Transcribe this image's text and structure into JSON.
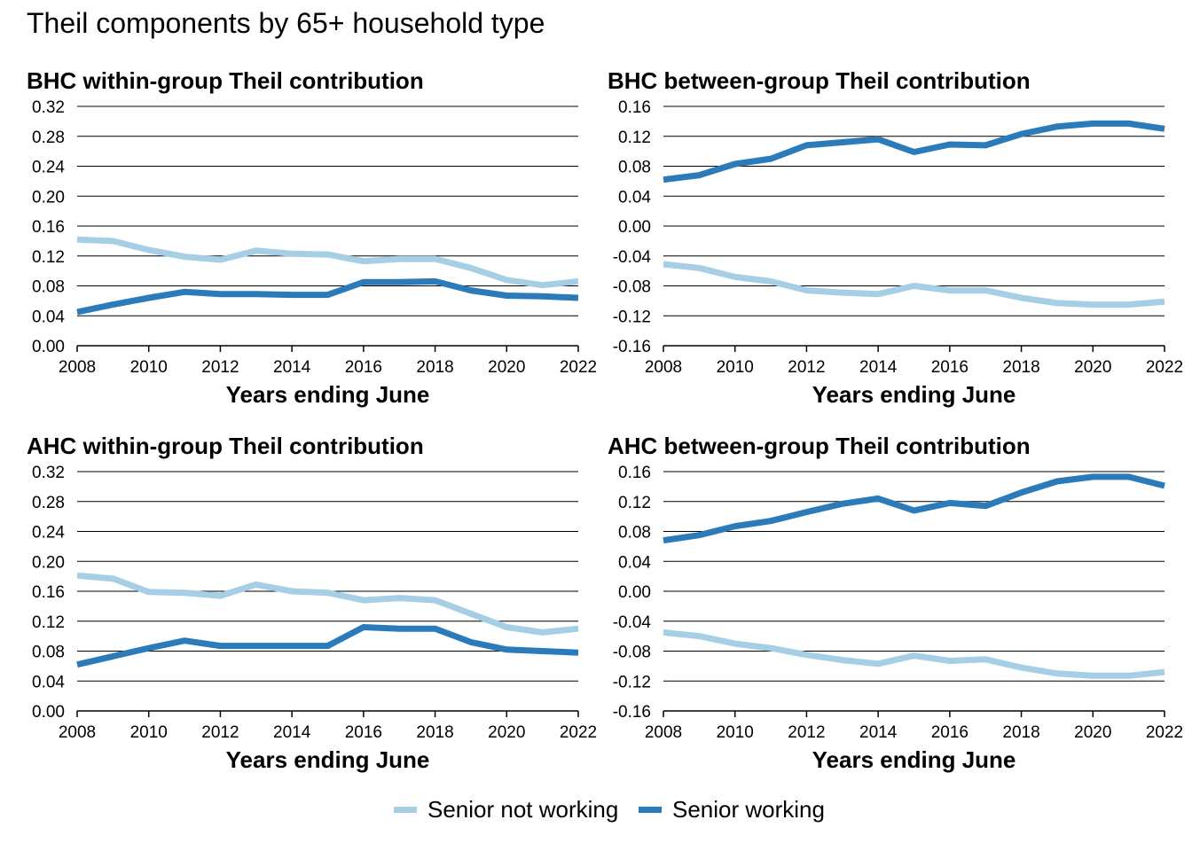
{
  "title": "Theil components by 65+ household type",
  "colors": {
    "senior_not_working": "#a6cfe6",
    "senior_working": "#2b7bba"
  },
  "legend": [
    {
      "label": "Senior not working",
      "color": "#a6cfe6"
    },
    {
      "label": "Senior working",
      "color": "#2b7bba"
    }
  ],
  "chart_data": [
    {
      "type": "line",
      "title": "BHC within-group Theil contribution",
      "xlabel": "Years ending June",
      "ylabel": "",
      "x": [
        2008,
        2009,
        2010,
        2011,
        2012,
        2013,
        2014,
        2015,
        2016,
        2017,
        2018,
        2019,
        2020,
        2021,
        2022
      ],
      "xticks": [
        "2008",
        "2010",
        "2012",
        "2014",
        "2016",
        "2018",
        "2020",
        "2022"
      ],
      "yticks": [
        "0.00",
        "0.04",
        "0.08",
        "0.12",
        "0.16",
        "0.20",
        "0.24",
        "0.28",
        "0.32"
      ],
      "ylim": [
        0,
        0.32
      ],
      "grid": true,
      "series": [
        {
          "name": "Senior not working",
          "color": "#a6cfe6",
          "values": [
            0.142,
            0.14,
            0.128,
            0.119,
            0.115,
            0.127,
            0.123,
            0.122,
            0.113,
            0.116,
            0.116,
            0.104,
            0.088,
            0.081,
            0.086
          ]
        },
        {
          "name": "Senior working",
          "color": "#2b7bba",
          "values": [
            0.045,
            0.055,
            0.064,
            0.072,
            0.069,
            0.069,
            0.068,
            0.068,
            0.085,
            0.085,
            0.086,
            0.074,
            0.067,
            0.066,
            0.064
          ]
        }
      ]
    },
    {
      "type": "line",
      "title": "BHC between-group Theil contribution",
      "xlabel": "Years ending June",
      "ylabel": "",
      "x": [
        2008,
        2009,
        2010,
        2011,
        2012,
        2013,
        2014,
        2015,
        2016,
        2017,
        2018,
        2019,
        2020,
        2021,
        2022
      ],
      "xticks": [
        "2008",
        "2010",
        "2012",
        "2014",
        "2016",
        "2018",
        "2020",
        "2022"
      ],
      "yticks": [
        "-0.16",
        "-0.12",
        "-0.08",
        "-0.04",
        "0.00",
        "0.04",
        "0.08",
        "0.12",
        "0.16"
      ],
      "ylim": [
        -0.16,
        0.16
      ],
      "grid": true,
      "series": [
        {
          "name": "Senior not working",
          "color": "#a6cfe6",
          "values": [
            -0.051,
            -0.056,
            -0.068,
            -0.074,
            -0.086,
            -0.089,
            -0.091,
            -0.08,
            -0.086,
            -0.086,
            -0.096,
            -0.103,
            -0.105,
            -0.105,
            -0.101
          ]
        },
        {
          "name": "Senior working",
          "color": "#2b7bba",
          "values": [
            0.062,
            0.068,
            0.083,
            0.09,
            0.108,
            0.112,
            0.116,
            0.099,
            0.109,
            0.108,
            0.123,
            0.133,
            0.137,
            0.137,
            0.13
          ]
        }
      ]
    },
    {
      "type": "line",
      "title": "AHC within-group Theil contribution",
      "xlabel": "Years ending June",
      "ylabel": "",
      "x": [
        2008,
        2009,
        2010,
        2011,
        2012,
        2013,
        2014,
        2015,
        2016,
        2017,
        2018,
        2019,
        2020,
        2021,
        2022
      ],
      "xticks": [
        "2008",
        "2010",
        "2012",
        "2014",
        "2016",
        "2018",
        "2020",
        "2022"
      ],
      "yticks": [
        "0.00",
        "0.04",
        "0.08",
        "0.12",
        "0.16",
        "0.20",
        "0.24",
        "0.28",
        "0.32"
      ],
      "ylim": [
        0,
        0.32
      ],
      "grid": true,
      "series": [
        {
          "name": "Senior not working",
          "color": "#a6cfe6",
          "values": [
            0.181,
            0.177,
            0.159,
            0.158,
            0.154,
            0.169,
            0.16,
            0.158,
            0.148,
            0.151,
            0.148,
            0.13,
            0.112,
            0.105,
            0.11
          ]
        },
        {
          "name": "Senior working",
          "color": "#2b7bba",
          "values": [
            0.062,
            0.073,
            0.084,
            0.094,
            0.087,
            0.087,
            0.087,
            0.087,
            0.112,
            0.11,
            0.11,
            0.092,
            0.082,
            0.08,
            0.078
          ]
        }
      ]
    },
    {
      "type": "line",
      "title": "AHC between-group Theil contribution",
      "xlabel": "Years ending June",
      "ylabel": "",
      "x": [
        2008,
        2009,
        2010,
        2011,
        2012,
        2013,
        2014,
        2015,
        2016,
        2017,
        2018,
        2019,
        2020,
        2021,
        2022
      ],
      "xticks": [
        "2008",
        "2010",
        "2012",
        "2014",
        "2016",
        "2018",
        "2020",
        "2022"
      ],
      "yticks": [
        "-0.16",
        "-0.12",
        "-0.08",
        "-0.04",
        "0.00",
        "0.04",
        "0.08",
        "0.12",
        "0.16"
      ],
      "ylim": [
        -0.16,
        0.16
      ],
      "grid": true,
      "series": [
        {
          "name": "Senior not working",
          "color": "#a6cfe6",
          "values": [
            -0.055,
            -0.06,
            -0.07,
            -0.076,
            -0.085,
            -0.092,
            -0.097,
            -0.086,
            -0.093,
            -0.091,
            -0.102,
            -0.11,
            -0.113,
            -0.113,
            -0.108
          ]
        },
        {
          "name": "Senior working",
          "color": "#2b7bba",
          "values": [
            0.068,
            0.075,
            0.087,
            0.094,
            0.106,
            0.117,
            0.124,
            0.108,
            0.118,
            0.114,
            0.132,
            0.147,
            0.153,
            0.153,
            0.141
          ]
        }
      ]
    }
  ]
}
